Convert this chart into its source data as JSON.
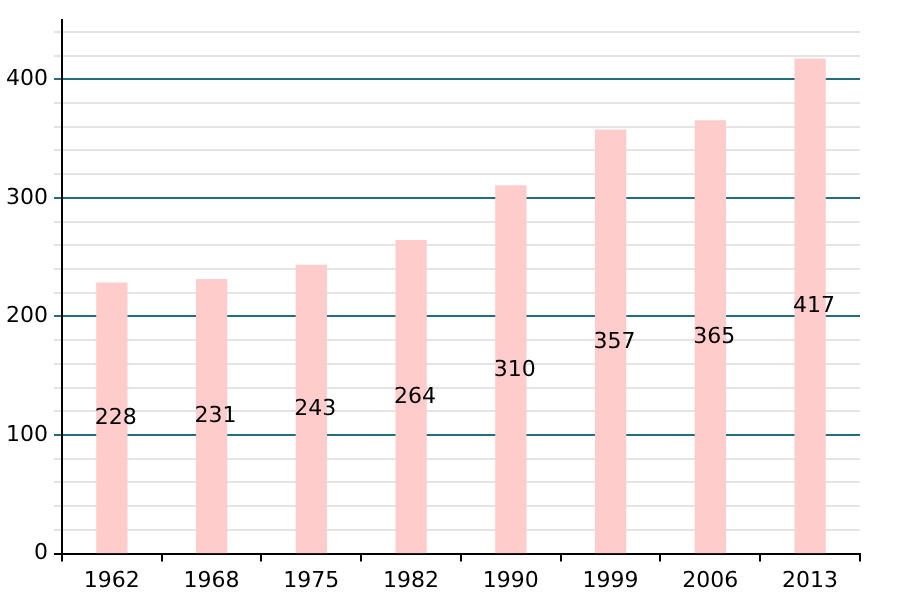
{
  "chart_data": {
    "type": "bar",
    "categories": [
      "1962",
      "1968",
      "1975",
      "1982",
      "1990",
      "1999",
      "2006",
      "2013"
    ],
    "values": [
      228,
      231,
      243,
      264,
      310,
      357,
      365,
      417
    ],
    "color": "#ffcccc",
    "ylim": [
      0,
      450
    ],
    "yticks": [
      0,
      {
        "value": 20,
        "label": null
      },
      {
        "value": 40,
        "label": null
      },
      {
        "value": 60,
        "label": null
      },
      {
        "value": 80,
        "label": null
      },
      100,
      {
        "value": 120,
        "label": null
      },
      {
        "value": 140,
        "label": null
      },
      {
        "value": 160,
        "label": null
      },
      {
        "value": 180,
        "label": null
      },
      200,
      {
        "value": 220,
        "label": null
      },
      {
        "value": 240,
        "label": null
      },
      {
        "value": 260,
        "label": null
      },
      {
        "value": 280,
        "label": null
      },
      300,
      {
        "value": 320,
        "label": null
      },
      {
        "value": 340,
        "label": null
      },
      {
        "value": 360,
        "label": null
      },
      {
        "value": 380,
        "label": null
      },
      400,
      {
        "value": 420,
        "label": null
      },
      {
        "value": 440,
        "label": null
      }
    ],
    "grid": true,
    "data_labels": true
  }
}
